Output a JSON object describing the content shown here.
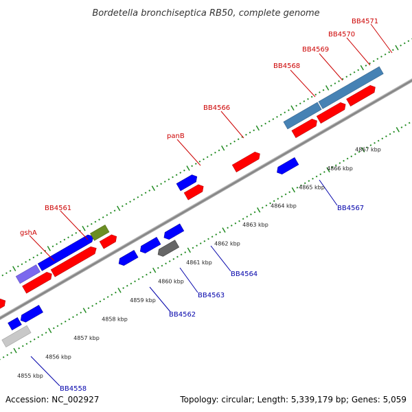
{
  "title": "Bordetella bronchiseptica RB50, complete genome",
  "footer": {
    "accession": "Accession: NC_002927",
    "stats": "Topology: circular; Length: 5,339,179 bp; Genes: 5,059"
  },
  "colors": {
    "forward": "#ff0000",
    "reverse": "#0000ff",
    "steelblue": "#4682b4",
    "slateblue": "#7b68ee",
    "olive": "#6b8e23",
    "gray": "#666666",
    "lightgray": "#c8c8c8",
    "tick": "#228b22",
    "backbone": "#8c8c8c",
    "label_forward": "#cc0000",
    "label_reverse": "#0000aa"
  },
  "scale_labels": [
    "4855 kbp",
    "4856 kbp",
    "4857 kbp",
    "4858 kbp",
    "4859 kbp",
    "4860 kbp",
    "4861 kbp",
    "4862 kbp",
    "4863 kbp",
    "4864 kbp",
    "4865 kbp",
    "4866 kbp",
    "4867 kbp"
  ],
  "gene_labels": {
    "forward": [
      "gshA",
      "BB4561",
      "panB",
      "BB4566",
      "BB4568",
      "BB4569",
      "BB4570",
      "BB4571"
    ],
    "reverse": [
      "BB4558",
      "BB4562",
      "BB4563",
      "BB4564",
      "BB4567"
    ]
  }
}
